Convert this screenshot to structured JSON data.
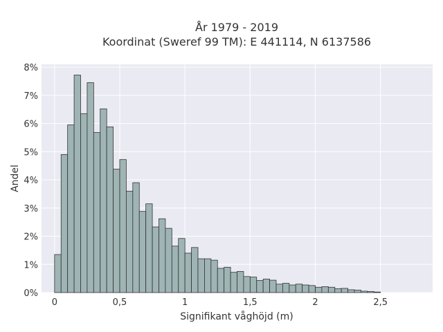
{
  "chart_data": {
    "type": "bar",
    "title_lines": [
      "År 1979 - 2019",
      "Koordinat (Sweref 99 TM): E 441114, N 6137586"
    ],
    "xlabel": "Signifikant våghöjd (m)",
    "ylabel": "Andel",
    "bin_width": 0.05,
    "x_start": 0.0,
    "xlim": [
      -0.1,
      2.9
    ],
    "ylim": [
      0,
      8.1
    ],
    "x_ticks": [
      0,
      0.5,
      1,
      1.5,
      2,
      2.5
    ],
    "x_tick_labels": [
      "0",
      "0,5",
      "1",
      "1,5",
      "2",
      "2,5"
    ],
    "y_ticks": [
      0,
      1,
      2,
      3,
      4,
      5,
      6,
      7,
      8
    ],
    "y_tick_labels": [
      "0%",
      "1%",
      "2%",
      "3%",
      "4%",
      "5%",
      "6%",
      "7%",
      "8%"
    ],
    "values": [
      1.35,
      4.9,
      5.95,
      7.72,
      6.35,
      7.45,
      5.68,
      6.52,
      5.88,
      4.38,
      4.72,
      3.6,
      3.9,
      2.88,
      3.15,
      2.33,
      2.62,
      2.28,
      1.65,
      1.92,
      1.4,
      1.6,
      1.2,
      1.2,
      1.15,
      0.86,
      0.9,
      0.72,
      0.75,
      0.57,
      0.55,
      0.43,
      0.48,
      0.44,
      0.3,
      0.33,
      0.27,
      0.3,
      0.27,
      0.25,
      0.19,
      0.21,
      0.19,
      0.14,
      0.15,
      0.1,
      0.09,
      0.05,
      0.04,
      0.02
    ],
    "grid": true,
    "colors": {
      "bar_fill": "#9fb4b4",
      "bar_edge": "#333333",
      "plot_bg": "#eaeaf2",
      "grid": "#ffffff"
    }
  }
}
